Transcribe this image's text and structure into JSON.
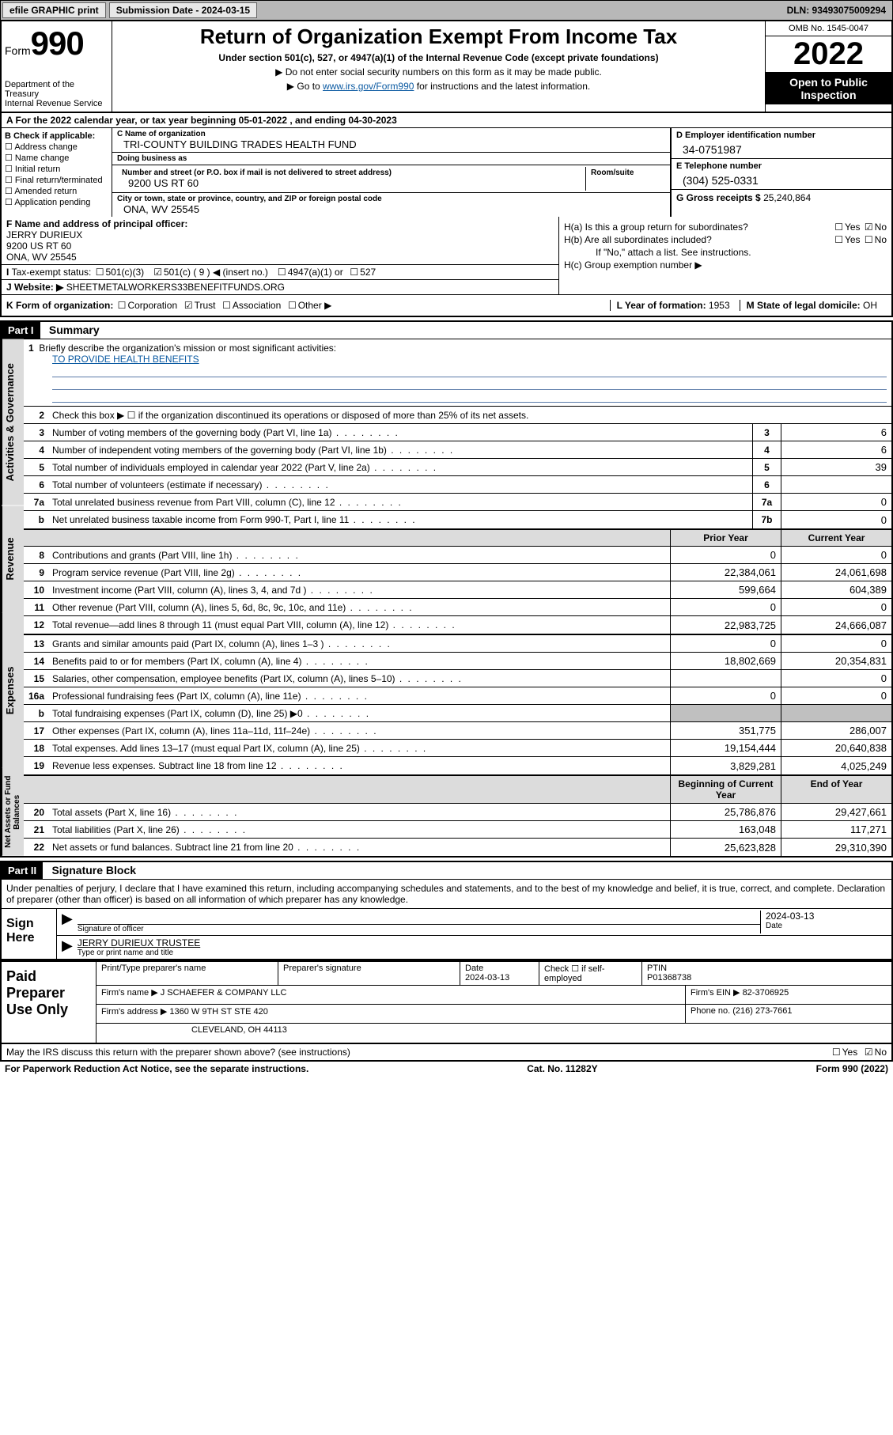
{
  "topbar": {
    "efile": "efile GRAPHIC print",
    "sub_label": "Submission Date - 2024-03-15",
    "dln": "DLN: 93493075009294"
  },
  "header": {
    "form_word": "Form",
    "form_num": "990",
    "dept": "Department of the Treasury",
    "irs": "Internal Revenue Service",
    "title": "Return of Organization Exempt From Income Tax",
    "sub": "Under section 501(c), 527, or 4947(a)(1) of the Internal Revenue Code (except private foundations)",
    "note1": "▶ Do not enter social security numbers on this form as it may be made public.",
    "note2_pre": "▶ Go to ",
    "note2_link": "www.irs.gov/Form990",
    "note2_post": " for instructions and the latest information.",
    "omb": "OMB No. 1545-0047",
    "year": "2022",
    "open": "Open to Public Inspection"
  },
  "row_a": "A For the 2022 calendar year, or tax year beginning 05-01-2022   , and ending 04-30-2023",
  "section_b": {
    "hdr": "B Check if applicable:",
    "opts": [
      "Address change",
      "Name change",
      "Initial return",
      "Final return/terminated",
      "Amended return",
      "Application pending"
    ]
  },
  "section_c": {
    "name_label": "C Name of organization",
    "name": "TRI-COUNTY BUILDING TRADES HEALTH FUND",
    "dba_label": "Doing business as",
    "dba": "",
    "addr_label": "Number and street (or P.O. box if mail is not delivered to street address)",
    "room_label": "Room/suite",
    "addr": "9200 US RT 60",
    "city_label": "City or town, state or province, country, and ZIP or foreign postal code",
    "city": "ONA, WV  25545"
  },
  "section_d": {
    "ein_label": "D Employer identification number",
    "ein": "34-0751987",
    "tel_label": "E Telephone number",
    "tel": "(304) 525-0331",
    "gross_label": "G Gross receipts $",
    "gross": "25,240,864"
  },
  "row_f": {
    "label": "F Name and address of principal officer:",
    "name": "JERRY DURIEUX",
    "addr1": "9200 US RT 60",
    "addr2": "ONA, WV  25545"
  },
  "row_i": {
    "label": "Tax-exempt status:",
    "c3": "501(c)(3)",
    "c9": "501(c) ( 9 ) ◀ (insert no.)",
    "a1": "4947(a)(1) or",
    "s527": "527"
  },
  "row_j": {
    "label": "J   Website: ▶",
    "val": "SHEETMETALWORKERS33BENEFITFUNDS.ORG"
  },
  "section_h": {
    "a_label": "H(a)  Is this a group return for subordinates?",
    "a_yes": "Yes",
    "a_no": "No",
    "b_label": "H(b)  Are all subordinates included?",
    "b_yes": "Yes",
    "b_no": "No",
    "b_note": "If \"No,\" attach a list. See instructions.",
    "c_label": "H(c)  Group exemption number ▶"
  },
  "row_k": {
    "label": "K Form of organization:",
    "corp": "Corporation",
    "trust": "Trust",
    "assoc": "Association",
    "other": "Other ▶",
    "l_label": "L Year of formation:",
    "l_val": "1953",
    "m_label": "M State of legal domicile:",
    "m_val": "OH"
  },
  "part1": {
    "hdr": "Part I",
    "title": "Summary"
  },
  "mission": {
    "num": "1",
    "label": "Briefly describe the organization's mission or most significant activities:",
    "val": "TO PROVIDE HEALTH BENEFITS"
  },
  "governance": {
    "label": "Activities & Governance",
    "lines": [
      {
        "n": "2",
        "d": "Check this box ▶ ☐  if the organization discontinued its operations or disposed of more than 25% of its net assets.",
        "box": "",
        "v": ""
      },
      {
        "n": "3",
        "d": "Number of voting members of the governing body (Part VI, line 1a)",
        "box": "3",
        "v": "6"
      },
      {
        "n": "4",
        "d": "Number of independent voting members of the governing body (Part VI, line 1b)",
        "box": "4",
        "v": "6"
      },
      {
        "n": "5",
        "d": "Total number of individuals employed in calendar year 2022 (Part V, line 2a)",
        "box": "5",
        "v": "39"
      },
      {
        "n": "6",
        "d": "Total number of volunteers (estimate if necessary)",
        "box": "6",
        "v": ""
      },
      {
        "n": "7a",
        "d": "Total unrelated business revenue from Part VIII, column (C), line 12",
        "box": "7a",
        "v": "0"
      },
      {
        "n": "b",
        "d": "Net unrelated business taxable income from Form 990-T, Part I, line 11",
        "box": "7b",
        "v": "0"
      }
    ]
  },
  "col_hdrs": {
    "prior": "Prior Year",
    "current": "Current Year",
    "boc": "Beginning of Current Year",
    "eoy": "End of Year"
  },
  "revenue": {
    "label": "Revenue",
    "lines": [
      {
        "n": "8",
        "d": "Contributions and grants (Part VIII, line 1h)",
        "p": "0",
        "c": "0"
      },
      {
        "n": "9",
        "d": "Program service revenue (Part VIII, line 2g)",
        "p": "22,384,061",
        "c": "24,061,698"
      },
      {
        "n": "10",
        "d": "Investment income (Part VIII, column (A), lines 3, 4, and 7d )",
        "p": "599,664",
        "c": "604,389"
      },
      {
        "n": "11",
        "d": "Other revenue (Part VIII, column (A), lines 5, 6d, 8c, 9c, 10c, and 11e)",
        "p": "0",
        "c": "0"
      },
      {
        "n": "12",
        "d": "Total revenue—add lines 8 through 11 (must equal Part VIII, column (A), line 12)",
        "p": "22,983,725",
        "c": "24,666,087"
      }
    ]
  },
  "expenses": {
    "label": "Expenses",
    "lines": [
      {
        "n": "13",
        "d": "Grants and similar amounts paid (Part IX, column (A), lines 1–3 )",
        "p": "0",
        "c": "0"
      },
      {
        "n": "14",
        "d": "Benefits paid to or for members (Part IX, column (A), line 4)",
        "p": "18,802,669",
        "c": "20,354,831"
      },
      {
        "n": "15",
        "d": "Salaries, other compensation, employee benefits (Part IX, column (A), lines 5–10)",
        "p": "",
        "c": "0"
      },
      {
        "n": "16a",
        "d": "Professional fundraising fees (Part IX, column (A), line 11e)",
        "p": "0",
        "c": "0"
      },
      {
        "n": "b",
        "d": "Total fundraising expenses (Part IX, column (D), line 25) ▶0",
        "p": "shaded",
        "c": "shaded"
      },
      {
        "n": "17",
        "d": "Other expenses (Part IX, column (A), lines 11a–11d, 11f–24e)",
        "p": "351,775",
        "c": "286,007"
      },
      {
        "n": "18",
        "d": "Total expenses. Add lines 13–17 (must equal Part IX, column (A), line 25)",
        "p": "19,154,444",
        "c": "20,640,838"
      },
      {
        "n": "19",
        "d": "Revenue less expenses. Subtract line 18 from line 12",
        "p": "3,829,281",
        "c": "4,025,249"
      }
    ]
  },
  "netassets": {
    "label": "Net Assets or Fund Balances",
    "lines": [
      {
        "n": "20",
        "d": "Total assets (Part X, line 16)",
        "p": "25,786,876",
        "c": "29,427,661"
      },
      {
        "n": "21",
        "d": "Total liabilities (Part X, line 26)",
        "p": "163,048",
        "c": "117,271"
      },
      {
        "n": "22",
        "d": "Net assets or fund balances. Subtract line 21 from line 20",
        "p": "25,623,828",
        "c": "29,310,390"
      }
    ]
  },
  "part2": {
    "hdr": "Part II",
    "title": "Signature Block"
  },
  "sig": {
    "decl": "Under penalties of perjury, I declare that I have examined this return, including accompanying schedules and statements, and to the best of my knowledge and belief, it is true, correct, and complete. Declaration of preparer (other than officer) is based on all information of which preparer has any knowledge.",
    "sign_here": "Sign Here",
    "sig_label": "Signature of officer",
    "date_label": "Date",
    "date": "2024-03-13",
    "name": "JERRY DURIEUX  TRUSTEE",
    "name_label": "Type or print name and title"
  },
  "preparer": {
    "label": "Paid Preparer Use Only",
    "col1": "Print/Type preparer's name",
    "col2": "Preparer's signature",
    "col3": "Date",
    "col3v": "2024-03-13",
    "col4": "Check ☐ if self-employed",
    "col5": "PTIN",
    "col5v": "P01368738",
    "firm_label": "Firm's name  ▶",
    "firm": "J SCHAEFER & COMPANY LLC",
    "ein_label": "Firm's EIN ▶",
    "ein": "82-3706925",
    "addr_label": "Firm's address ▶",
    "addr1": "1360 W 9TH ST STE 420",
    "addr2": "CLEVELAND, OH  44113",
    "phone_label": "Phone no.",
    "phone": "(216) 273-7661"
  },
  "footer": {
    "q": "May the IRS discuss this return with the preparer shown above? (see instructions)",
    "yes": "Yes",
    "no": "No",
    "pra": "For Paperwork Reduction Act Notice, see the separate instructions.",
    "cat": "Cat. No. 11282Y",
    "form": "Form 990 (2022)"
  }
}
